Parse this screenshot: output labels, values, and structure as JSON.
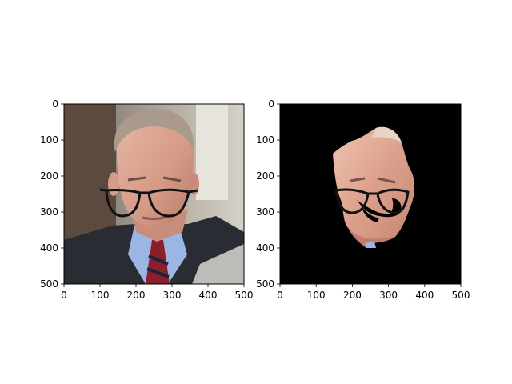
{
  "chart_data": [
    {
      "type": "image",
      "title": "",
      "xlabel": "",
      "ylabel": "",
      "xlim": [
        0,
        500
      ],
      "ylim": [
        500,
        0
      ],
      "xticks": [
        0,
        100,
        200,
        300,
        400,
        500
      ],
      "yticks": [
        0,
        100,
        200,
        300,
        400,
        500
      ],
      "xtick_labels": [
        "0",
        "100",
        "200",
        "300",
        "400",
        "500"
      ],
      "ytick_labels": [
        "0",
        "100",
        "200",
        "300",
        "400",
        "500"
      ],
      "grid": false,
      "content": "photo",
      "background_color": "#6b6a66"
    },
    {
      "type": "image",
      "title": "",
      "xlabel": "",
      "ylabel": "",
      "xlim": [
        0,
        500
      ],
      "ylim": [
        500,
        0
      ],
      "xticks": [
        0,
        100,
        200,
        300,
        400,
        500
      ],
      "yticks": [
        0,
        100,
        200,
        300,
        400,
        500
      ],
      "xtick_labels": [
        "0",
        "100",
        "200",
        "300",
        "400",
        "500"
      ],
      "ytick_labels": [
        "0",
        "100",
        "200",
        "300",
        "400",
        "500"
      ],
      "grid": false,
      "content": "masked-photo",
      "background_color": "#000000"
    }
  ]
}
